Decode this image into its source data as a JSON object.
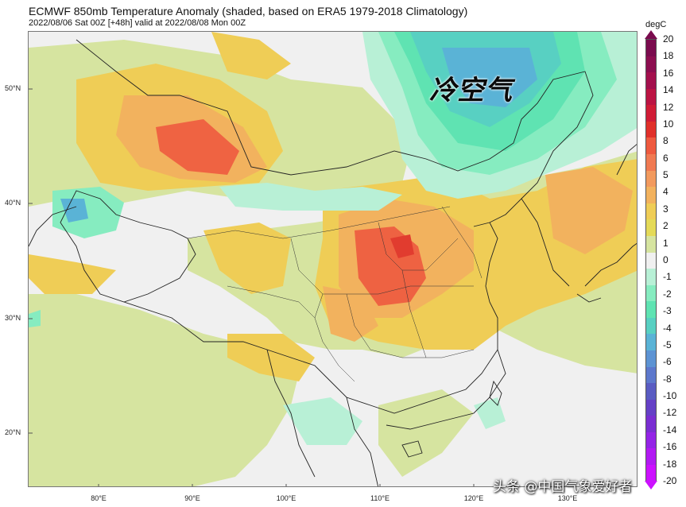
{
  "header": {
    "title": "ECMWF 850mb Temperature Anomaly (shaded, based on ERA5 1979-2018 Climatology)",
    "subtitle": "2022/08/06 Sat 00Z [+48h] valid at 2022/08/08 Mon 00Z"
  },
  "map": {
    "lat_labels": [
      "50°N",
      "40°N",
      "30°N",
      "20°N"
    ],
    "lon_labels": [
      "80°E",
      "90°E",
      "100°E",
      "110°E",
      "120°E",
      "130°E"
    ],
    "annotation": "冷空气",
    "watermark": "头条 @中国气象爱好者"
  },
  "colorbar": {
    "unit": "degC",
    "labels": [
      "20",
      "18",
      "16",
      "14",
      "12",
      "10",
      "8",
      "6",
      "5",
      "4",
      "3",
      "2",
      "1",
      "0",
      "-1",
      "-2",
      "-3",
      "-4",
      "-5",
      "-6",
      "-8",
      "-10",
      "-12",
      "-14",
      "-16",
      "-18",
      "-20"
    ],
    "colors": [
      "#7a0b4e",
      "#8c0e50",
      "#a3104d",
      "#bb1443",
      "#d01c36",
      "#e0302a",
      "#ee5a3f",
      "#f07a52",
      "#f29a5e",
      "#f2b25e",
      "#efcd56",
      "#e4da58",
      "#d6e4a0",
      "#f0f0f0",
      "#b8f0d6",
      "#86ecc0",
      "#5fe3b2",
      "#58d0c2",
      "#5ab3d6",
      "#5d93d3",
      "#5d78cc",
      "#5a5cc2",
      "#6540c6",
      "#7a2ed2",
      "#9424e6",
      "#b11af2",
      "#cc11ff"
    ]
  },
  "chart_data": {
    "type": "heatmap",
    "title": "ECMWF 850mb Temperature Anomaly (shaded, based on ERA5 1979-2018 Climatology)",
    "valid_time": "2022/08/08 Mon 00Z",
    "unit": "degC",
    "lon_range": [
      73,
      138
    ],
    "lat_range": [
      15,
      55
    ],
    "key_regions": [
      {
        "label": "冷空气",
        "approx_lon": 120,
        "approx_lat": 50,
        "anomaly": -4
      },
      {
        "approx_lon": 112,
        "approx_lat": 33,
        "anomaly": 6
      },
      {
        "approx_lon": 86,
        "approx_lat": 45,
        "anomaly": 6
      },
      {
        "approx_lon": 77,
        "approx_lat": 39,
        "anomaly": -5
      }
    ]
  }
}
